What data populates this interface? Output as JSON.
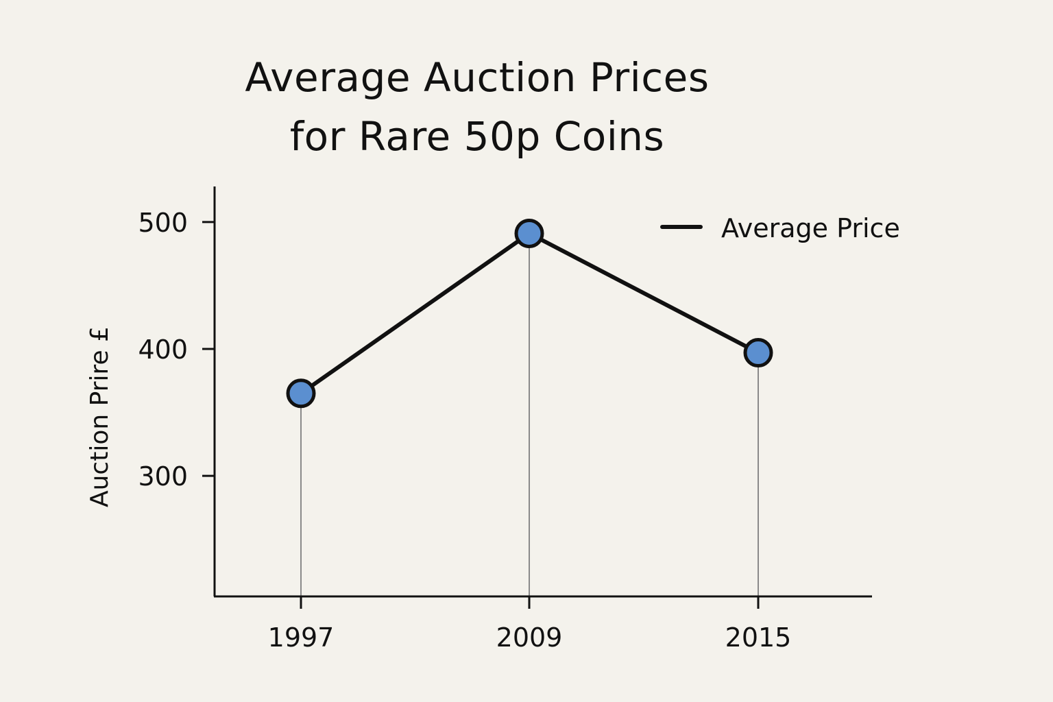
{
  "chart_data": {
    "type": "line",
    "title_lines": [
      "Average Auction Prices",
      "for Rare 50p Coins"
    ],
    "categories": [
      "1997",
      "2009",
      "2015"
    ],
    "series": [
      {
        "name": "Average Price",
        "values": [
          365,
          491,
          397
        ]
      }
    ],
    "xlabel": "",
    "ylabel": "Auction Prire £",
    "yticks": [
      300,
      400,
      500
    ],
    "ylim": [
      205,
      528
    ],
    "grid": false,
    "legend_position": "top-right",
    "point_color": "#5b8fd0",
    "line_color": "#111111",
    "drop_line_color": "#8a8a8a"
  }
}
